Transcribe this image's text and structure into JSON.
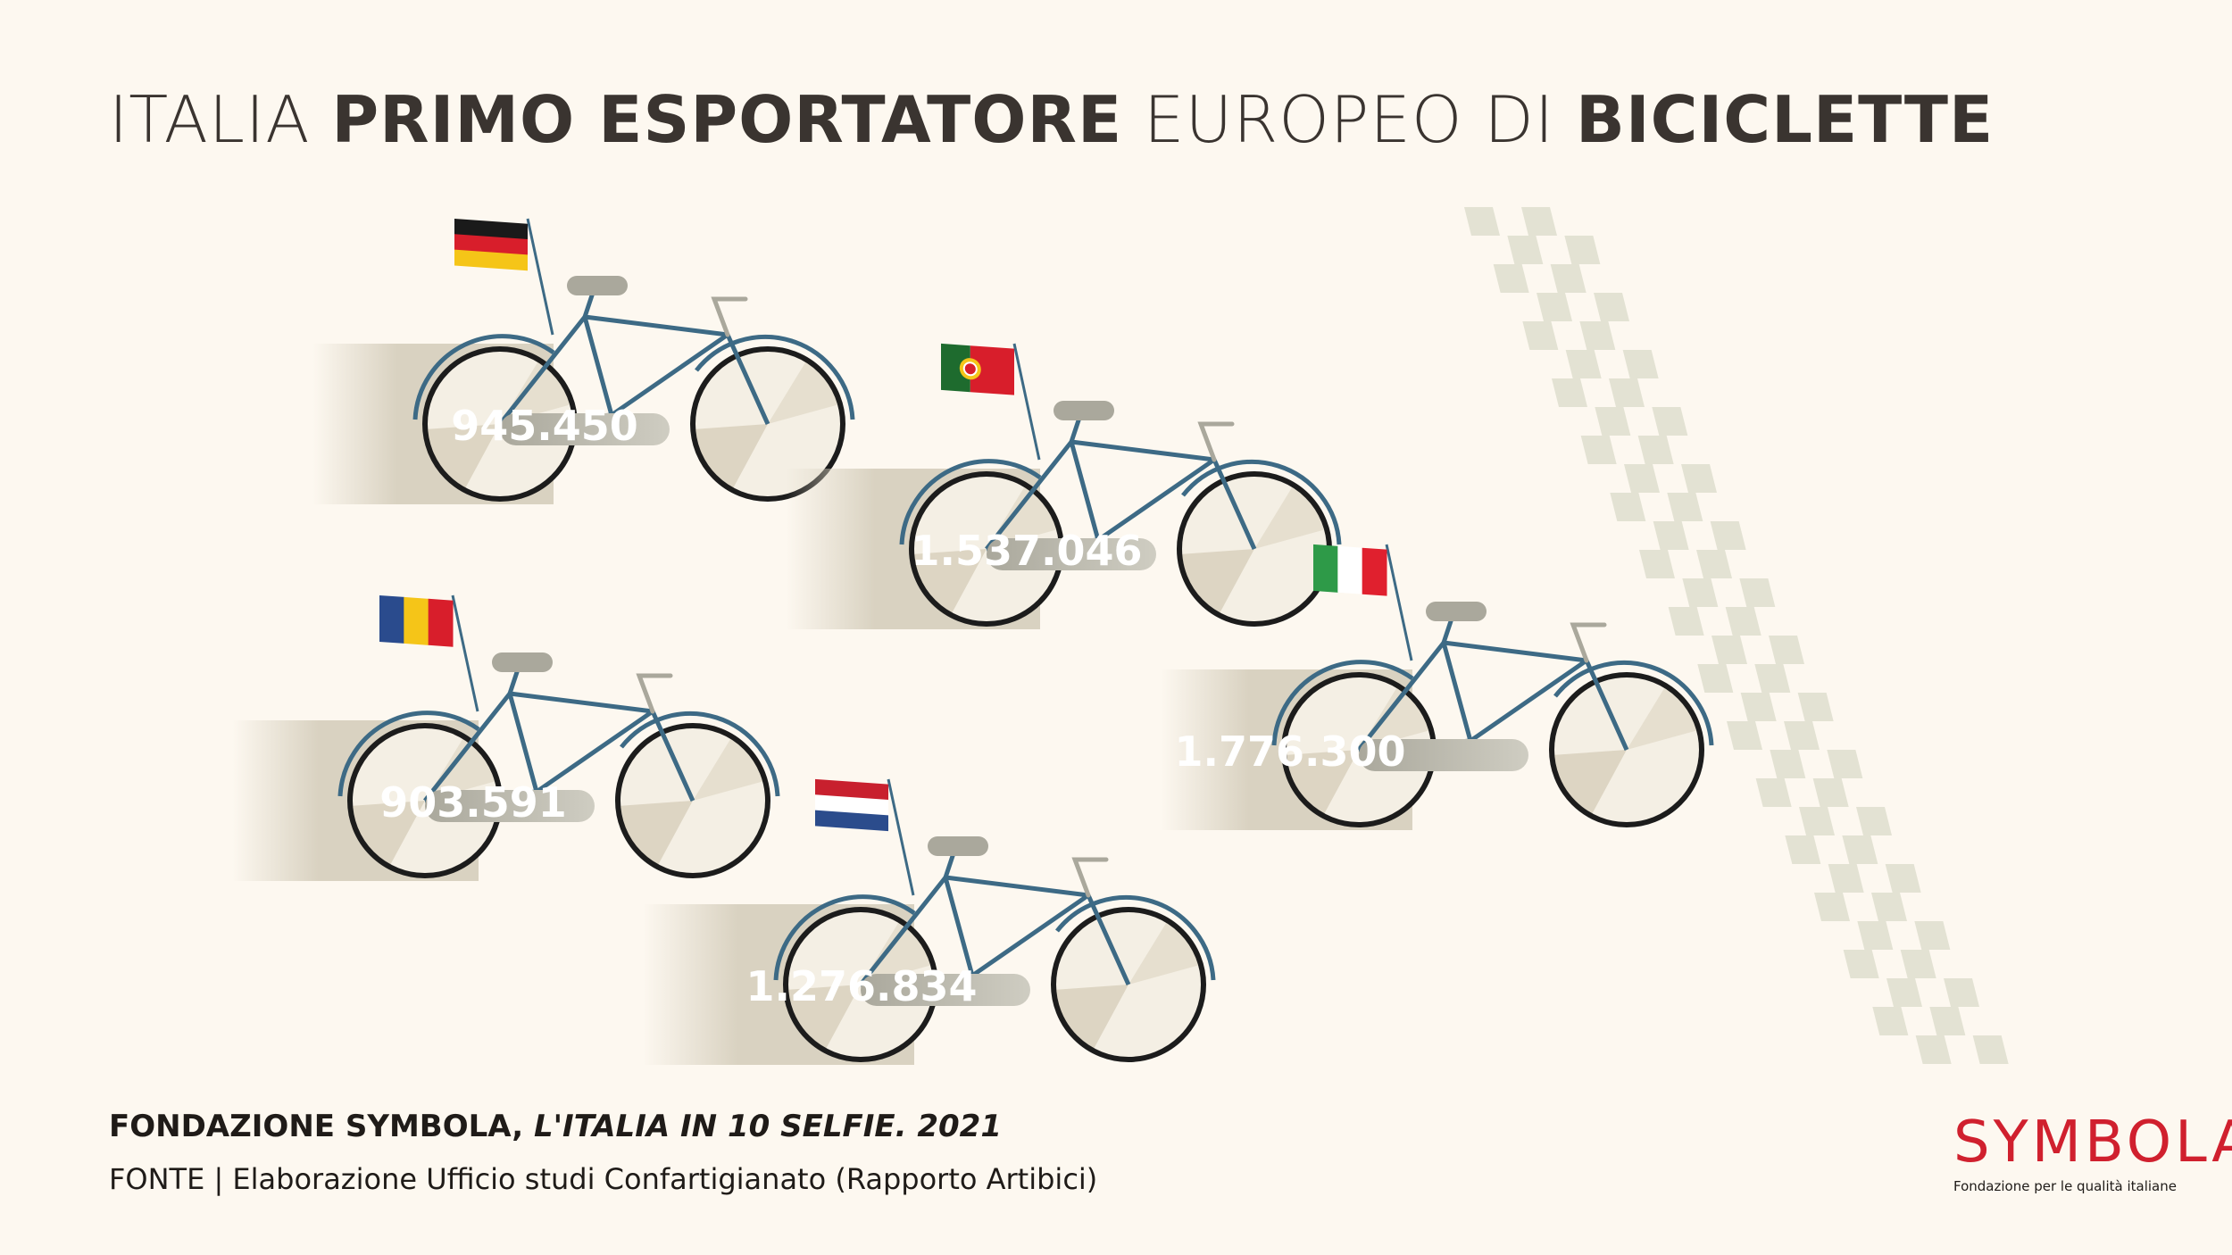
{
  "title": {
    "part1": "ITALIA ",
    "part2": "PRIMO ESPORTATORE",
    "part3": " EUROPEO DI ",
    "part4": "BICICLETTE"
  },
  "source": {
    "line1_bold": "FONDAZIONE SYMBOLA, ",
    "line1_italic": "L'ITALIA IN 10 SELFIE. 2021",
    "line2": "FONTE | Elaborazione Ufficio studi Confartigianato (Rapporto Artibici)"
  },
  "logo": {
    "word": "SYMBOLA",
    "tagline": "Fondazione per le qualità italiane"
  },
  "colors": {
    "background": "#fdf8f0",
    "trail": "#d9d2c1",
    "frame": "#3d6a85",
    "tire": "#1c1c1c",
    "seat": "#aaa89c",
    "logo": "#d0202e",
    "checker": "#e3e2d3"
  },
  "chart_data": {
    "type": "bar",
    "title": "ITALIA PRIMO ESPORTATORE EUROPEO DI BICICLETTE",
    "unit_note": "",
    "series": [
      {
        "flag": "germany",
        "value": 945450,
        "label": "945.450",
        "flag_colors": [
          "#1a1a1a",
          "#d81e2b",
          "#f5c518"
        ],
        "flag_orientation": "horizontal"
      },
      {
        "flag": "portugal",
        "value": 1537046,
        "label": "1.537.046",
        "flag_colors": [
          "#1e6b2e",
          "#d81e2b"
        ],
        "flag_orientation": "portugal"
      },
      {
        "flag": "romania",
        "value": 903591,
        "label": "903.591",
        "flag_colors": [
          "#2a4b8d",
          "#f5c518",
          "#d81e2b"
        ],
        "flag_orientation": "vertical"
      },
      {
        "flag": "italy",
        "value": 1776300,
        "label": "1.776.300",
        "flag_colors": [
          "#2e9a48",
          "#ffffff",
          "#e0202e"
        ],
        "flag_orientation": "vertical"
      },
      {
        "flag": "netherlands",
        "value": 1276834,
        "label": "1.276.834",
        "flag_colors": [
          "#c8202e",
          "#ffffff",
          "#2b4c8c"
        ],
        "flag_orientation": "horizontal"
      }
    ]
  }
}
